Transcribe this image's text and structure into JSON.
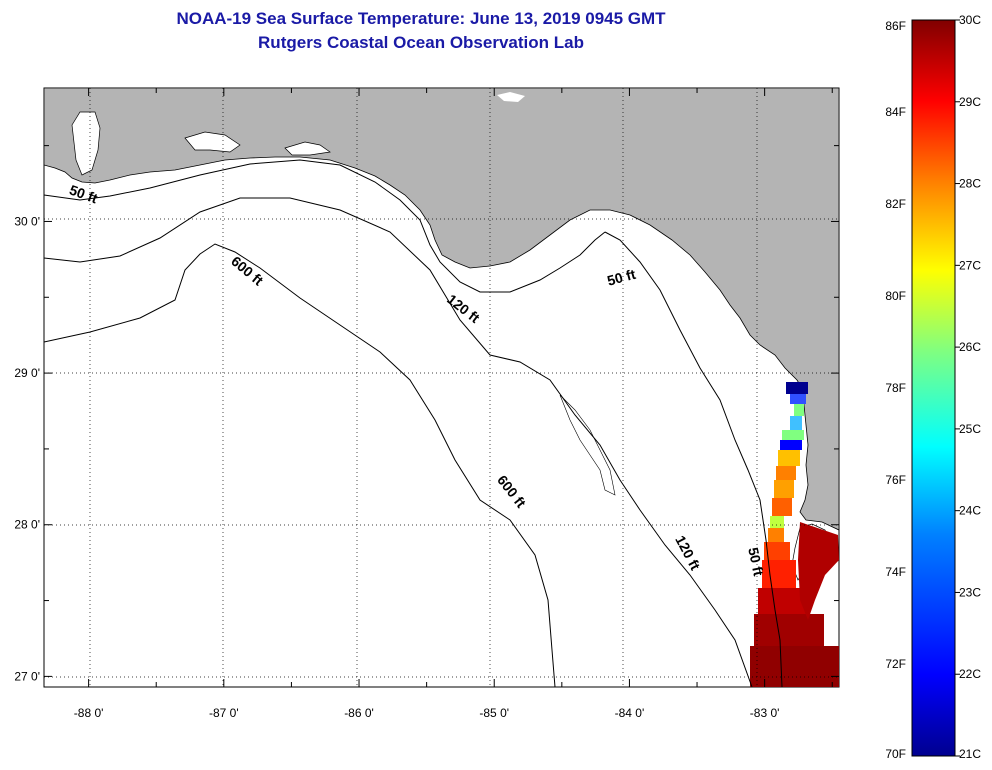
{
  "header": {
    "title_line1": "NOAA-19 Sea Surface Temperature:  June 13, 2019 0945 GMT",
    "title_line2": "Rutgers Coastal Ocean Observation Lab"
  },
  "map": {
    "lon_range": [
      -88.33,
      -82.45
    ],
    "lat_range": [
      26.93,
      30.88
    ],
    "lon_ticks": [
      {
        "lon": -88,
        "label": "-88 0'"
      },
      {
        "lon": -87,
        "label": "-87 0'"
      },
      {
        "lon": -86,
        "label": "-86 0'"
      },
      {
        "lon": -85,
        "label": "-85 0'"
      },
      {
        "lon": -84,
        "label": "-84 0'"
      },
      {
        "lon": -83,
        "label": "-83 0'"
      }
    ],
    "lat_ticks": [
      {
        "lat": 30,
        "label": "30 0'"
      },
      {
        "lat": 29,
        "label": "29 0'"
      },
      {
        "lat": 28,
        "label": "28 0'"
      },
      {
        "lat": 27,
        "label": "27 0'"
      }
    ],
    "contour_labels": [
      {
        "text": "50 ft",
        "lon": -88.05,
        "lat": 30.15,
        "rotate": 20
      },
      {
        "text": "600 ft",
        "lon": -86.85,
        "lat": 29.65,
        "rotate": 40
      },
      {
        "text": "120 ft",
        "lon": -85.25,
        "lat": 29.4,
        "rotate": 38
      },
      {
        "text": "50 ft",
        "lon": -84.05,
        "lat": 29.6,
        "rotate": -15
      },
      {
        "text": "600 ft",
        "lon": -84.9,
        "lat": 28.2,
        "rotate": 52
      },
      {
        "text": "120 ft",
        "lon": -83.6,
        "lat": 27.8,
        "rotate": 62
      },
      {
        "text": "50 ft",
        "lon": -83.1,
        "lat": 27.75,
        "rotate": 78
      }
    ],
    "colors": {
      "land": "#b4b4b4",
      "ocean": "#ffffff",
      "contour": "#000000"
    }
  },
  "colorbar": {
    "fahrenheit_labels": [
      "86F",
      "84F",
      "82F",
      "80F",
      "78F",
      "76F",
      "74F",
      "72F",
      "70F"
    ],
    "celsius_labels": [
      "30C",
      "29C",
      "28C",
      "27C",
      "26C",
      "25C",
      "24C",
      "23C",
      "22C",
      "21C"
    ],
    "range_c": [
      21,
      30
    ],
    "range_f": [
      70,
      86
    ],
    "gradient": [
      "#00008f",
      "#0000ff",
      "#0080ff",
      "#00ffff",
      "#80ff80",
      "#ffff00",
      "#ff8000",
      "#ff0000",
      "#800000"
    ]
  }
}
